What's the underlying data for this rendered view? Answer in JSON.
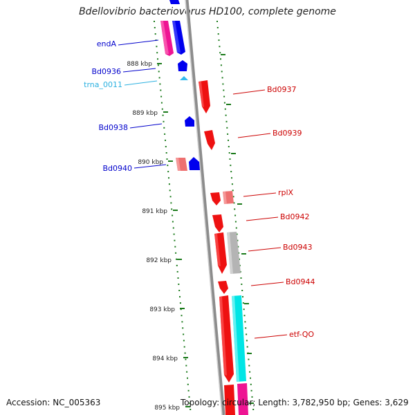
{
  "title": "Bdellovibrio bacteriovorus HD100, complete genome",
  "accession_text": "Accession: NC_005363",
  "topology_text": "Topology: circular; Length: 3,782,950 bp; Genes: 3,629",
  "colors": {
    "backbone": "#8c8c8c",
    "tick": "#1a7a1a",
    "left_label": "#0000cc",
    "rna_label": "#2ab0e0",
    "right_label": "#cc0000",
    "gene_red": "#ee1111",
    "gene_pink_red": "#ee7070",
    "gene_blue": "#0000ee",
    "gene_magenta": "#ee1493",
    "gene_gray": "#b4b4b4",
    "gene_cyan": "#00e5e5",
    "rna_cyan": "#33bbee"
  },
  "scale_labels": [
    "888 kbp",
    "889 kbp",
    "890 kbp",
    "891 kbp",
    "892 kbp",
    "893 kbp",
    "894 kbp",
    "895 kbp"
  ],
  "left_labels": [
    {
      "text": "endA",
      "kind": "gene"
    },
    {
      "text": "Bd0936",
      "kind": "gene"
    },
    {
      "text": "trna_0011",
      "kind": "rna"
    },
    {
      "text": "Bd0938",
      "kind": "gene"
    },
    {
      "text": "Bd0940",
      "kind": "gene"
    }
  ],
  "right_labels": [
    {
      "text": "Bd0937"
    },
    {
      "text": "Bd0939"
    },
    {
      "text": "rplX"
    },
    {
      "text": "Bd0942"
    },
    {
      "text": "Bd0943"
    },
    {
      "text": "Bd0944"
    },
    {
      "text": "etf-QO"
    }
  ]
}
